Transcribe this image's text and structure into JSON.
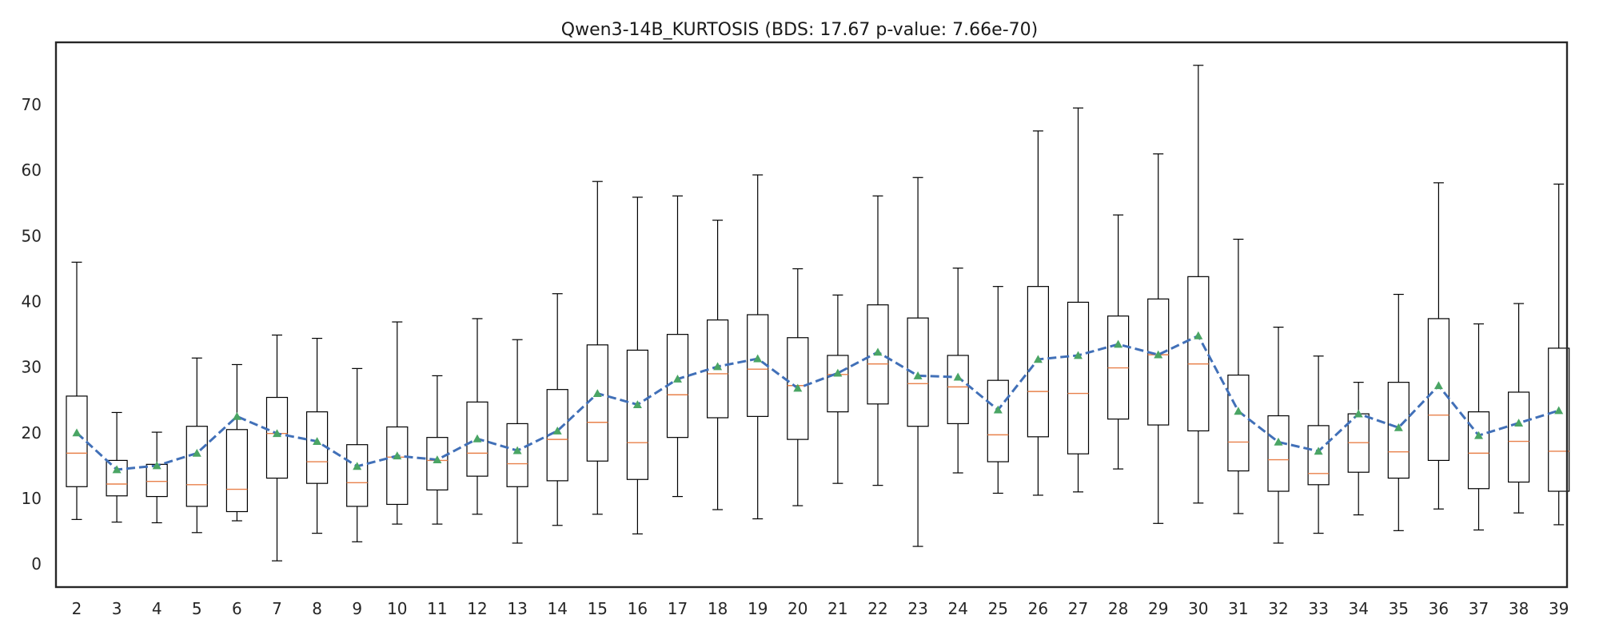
{
  "chart_data": {
    "type": "box",
    "title": "Qwen3-14B_KURTOSIS (BDS: 17.67 p-value: 7.66e-70)",
    "xlabel": "",
    "ylabel": "",
    "ylim": [
      -3.5,
      79.5
    ],
    "yticks": [
      0,
      10,
      20,
      30,
      40,
      50,
      60,
      70
    ],
    "grid": false,
    "legend": "none",
    "colors": {
      "box": "#000000",
      "median": "#e8804a",
      "mean_marker": "#4aa564",
      "mean_line": "#4170b8"
    },
    "categories": [
      "2",
      "3",
      "4",
      "5",
      "6",
      "7",
      "8",
      "9",
      "10",
      "11",
      "12",
      "13",
      "14",
      "15",
      "16",
      "17",
      "18",
      "19",
      "20",
      "21",
      "22",
      "23",
      "24",
      "25",
      "26",
      "27",
      "28",
      "29",
      "30",
      "31",
      "32",
      "33",
      "34",
      "35",
      "36",
      "37",
      "38",
      "39"
    ],
    "boxes": [
      {
        "label": "2",
        "whislo": 6.8,
        "q1": 11.8,
        "med": 16.9,
        "q3": 25.6,
        "whishi": 46.0,
        "mean": 20.0
      },
      {
        "label": "3",
        "whislo": 6.4,
        "q1": 10.4,
        "med": 12.2,
        "q3": 15.8,
        "whishi": 23.1,
        "mean": 14.4
      },
      {
        "label": "4",
        "whislo": 6.3,
        "q1": 10.3,
        "med": 12.6,
        "q3": 15.2,
        "whishi": 20.1,
        "mean": 15.0
      },
      {
        "label": "5",
        "whislo": 4.8,
        "q1": 8.8,
        "med": 12.1,
        "q3": 21.0,
        "whishi": 31.4,
        "mean": 16.9
      },
      {
        "label": "6",
        "whislo": 6.6,
        "q1": 8.0,
        "med": 11.4,
        "q3": 20.5,
        "whishi": 30.4,
        "mean": 22.5
      },
      {
        "label": "7",
        "whislo": 0.5,
        "q1": 13.1,
        "med": 19.9,
        "q3": 25.4,
        "whishi": 34.9,
        "mean": 19.9
      },
      {
        "label": "8",
        "whislo": 4.7,
        "q1": 12.3,
        "med": 15.6,
        "q3": 23.2,
        "whishi": 34.4,
        "mean": 18.7
      },
      {
        "label": "9",
        "whislo": 3.4,
        "q1": 8.8,
        "med": 12.4,
        "q3": 18.2,
        "whishi": 29.8,
        "mean": 14.9
      },
      {
        "label": "10",
        "whislo": 6.1,
        "q1": 9.1,
        "med": 16.3,
        "q3": 20.9,
        "whishi": 36.9,
        "mean": 16.5
      },
      {
        "label": "11",
        "whislo": 6.1,
        "q1": 11.3,
        "med": 15.8,
        "q3": 19.3,
        "whishi": 28.7,
        "mean": 15.9
      },
      {
        "label": "12",
        "whislo": 7.6,
        "q1": 13.4,
        "med": 16.9,
        "q3": 24.7,
        "whishi": 37.4,
        "mean": 19.1
      },
      {
        "label": "13",
        "whislo": 3.2,
        "q1": 11.8,
        "med": 15.3,
        "q3": 21.4,
        "whishi": 34.2,
        "mean": 17.3
      },
      {
        "label": "14",
        "whislo": 5.9,
        "q1": 12.7,
        "med": 19.0,
        "q3": 26.6,
        "whishi": 41.2,
        "mean": 20.3
      },
      {
        "label": "15",
        "whislo": 7.6,
        "q1": 15.7,
        "med": 21.6,
        "q3": 33.4,
        "whishi": 58.3,
        "mean": 26.0
      },
      {
        "label": "16",
        "whislo": 4.6,
        "q1": 12.9,
        "med": 18.5,
        "q3": 32.6,
        "whishi": 55.9,
        "mean": 24.3
      },
      {
        "label": "17",
        "whislo": 10.3,
        "q1": 19.3,
        "med": 25.8,
        "q3": 35.0,
        "whishi": 56.1,
        "mean": 28.2
      },
      {
        "label": "18",
        "whislo": 8.3,
        "q1": 22.3,
        "med": 29.0,
        "q3": 37.2,
        "whishi": 52.4,
        "mean": 30.1
      },
      {
        "label": "19",
        "whislo": 6.9,
        "q1": 22.5,
        "med": 29.7,
        "q3": 38.0,
        "whishi": 59.3,
        "mean": 31.3
      },
      {
        "label": "20",
        "whislo": 8.9,
        "q1": 19.0,
        "med": 27.2,
        "q3": 34.5,
        "whishi": 45.0,
        "mean": 26.8
      },
      {
        "label": "21",
        "whislo": 12.3,
        "q1": 23.2,
        "med": 28.9,
        "q3": 31.8,
        "whishi": 41.0,
        "mean": 29.1
      },
      {
        "label": "22",
        "whislo": 12.0,
        "q1": 24.4,
        "med": 30.5,
        "q3": 39.5,
        "whishi": 56.1,
        "mean": 32.3
      },
      {
        "label": "23",
        "whislo": 2.7,
        "q1": 21.0,
        "med": 27.5,
        "q3": 37.5,
        "whishi": 58.9,
        "mean": 28.7
      },
      {
        "label": "24",
        "whislo": 13.9,
        "q1": 21.4,
        "med": 27.0,
        "q3": 31.8,
        "whishi": 45.1,
        "mean": 28.5
      },
      {
        "label": "25",
        "whislo": 10.8,
        "q1": 15.6,
        "med": 19.7,
        "q3": 28.0,
        "whishi": 42.3,
        "mean": 23.5
      },
      {
        "label": "26",
        "whislo": 10.5,
        "q1": 19.4,
        "med": 26.3,
        "q3": 42.3,
        "whishi": 66.0,
        "mean": 31.2
      },
      {
        "label": "27",
        "whislo": 11.0,
        "q1": 16.8,
        "med": 26.0,
        "q3": 39.9,
        "whishi": 69.5,
        "mean": 31.8
      },
      {
        "label": "28",
        "whislo": 14.5,
        "q1": 22.1,
        "med": 29.9,
        "q3": 37.8,
        "whishi": 53.2,
        "mean": 33.5
      },
      {
        "label": "29",
        "whislo": 6.2,
        "q1": 21.2,
        "med": 31.9,
        "q3": 40.4,
        "whishi": 62.5,
        "mean": 31.9
      },
      {
        "label": "30",
        "whislo": 9.3,
        "q1": 20.3,
        "med": 30.5,
        "q3": 43.8,
        "whishi": 76.0,
        "mean": 34.8
      },
      {
        "label": "31",
        "whislo": 7.7,
        "q1": 14.2,
        "med": 18.6,
        "q3": 28.8,
        "whishi": 49.5,
        "mean": 23.3
      },
      {
        "label": "32",
        "whislo": 3.2,
        "q1": 11.1,
        "med": 15.9,
        "q3": 22.6,
        "whishi": 36.1,
        "mean": 18.6
      },
      {
        "label": "33",
        "whislo": 4.7,
        "q1": 12.1,
        "med": 13.8,
        "q3": 21.1,
        "whishi": 31.7,
        "mean": 17.2
      },
      {
        "label": "34",
        "whislo": 7.5,
        "q1": 14.0,
        "med": 18.5,
        "q3": 22.9,
        "whishi": 27.7,
        "mean": 22.9
      },
      {
        "label": "35",
        "whislo": 5.1,
        "q1": 13.1,
        "med": 17.1,
        "q3": 27.7,
        "whishi": 41.1,
        "mean": 20.8
      },
      {
        "label": "36",
        "whislo": 8.4,
        "q1": 15.8,
        "med": 22.7,
        "q3": 37.4,
        "whishi": 58.1,
        "mean": 27.2
      },
      {
        "label": "37",
        "whislo": 5.2,
        "q1": 11.5,
        "med": 16.9,
        "q3": 23.2,
        "whishi": 36.6,
        "mean": 19.6
      },
      {
        "label": "38",
        "whislo": 7.8,
        "q1": 12.5,
        "med": 18.7,
        "q3": 26.2,
        "whishi": 39.7,
        "mean": 21.5
      },
      {
        "label": "39",
        "whislo": 6.0,
        "q1": 11.1,
        "med": 17.2,
        "q3": 32.9,
        "whishi": 57.9,
        "mean": 23.4
      }
    ]
  }
}
